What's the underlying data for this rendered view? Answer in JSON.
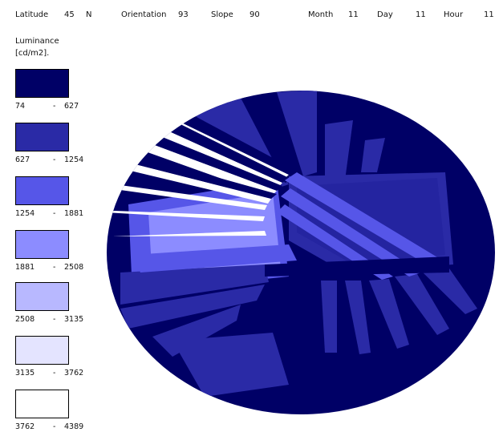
{
  "header": {
    "latitude_label": "Latitude",
    "latitude_value": "45",
    "latitude_hemisphere": "N",
    "orientation_label": "Orientation",
    "orientation_value": "93",
    "slope_label": "Slope",
    "slope_value": "90",
    "month_label": "Month",
    "month_value": "11",
    "day_label": "Day",
    "day_value": "11",
    "hour_label": "Hour",
    "hour_value": "11"
  },
  "legend": {
    "title_line1": "Luminance",
    "title_line2": "[cd/m2].",
    "items": [
      {
        "from": "74",
        "dash": "-",
        "to": "627",
        "color": "#000066"
      },
      {
        "from": "627",
        "dash": "-",
        "to": "1254",
        "color": "#2a2aa6"
      },
      {
        "from": "1254",
        "dash": "-",
        "to": "1881",
        "color": "#5656e8"
      },
      {
        "from": "1881",
        "dash": "-",
        "to": "2508",
        "color": "#8c8cff"
      },
      {
        "from": "2508",
        "dash": "-",
        "to": "3135",
        "color": "#b8b8ff"
      },
      {
        "from": "3135",
        "dash": "-",
        "to": "3762",
        "color": "#e4e4ff"
      },
      {
        "from": "3762",
        "dash": "-",
        "to": "4389",
        "color": "#ffffff"
      }
    ]
  }
}
